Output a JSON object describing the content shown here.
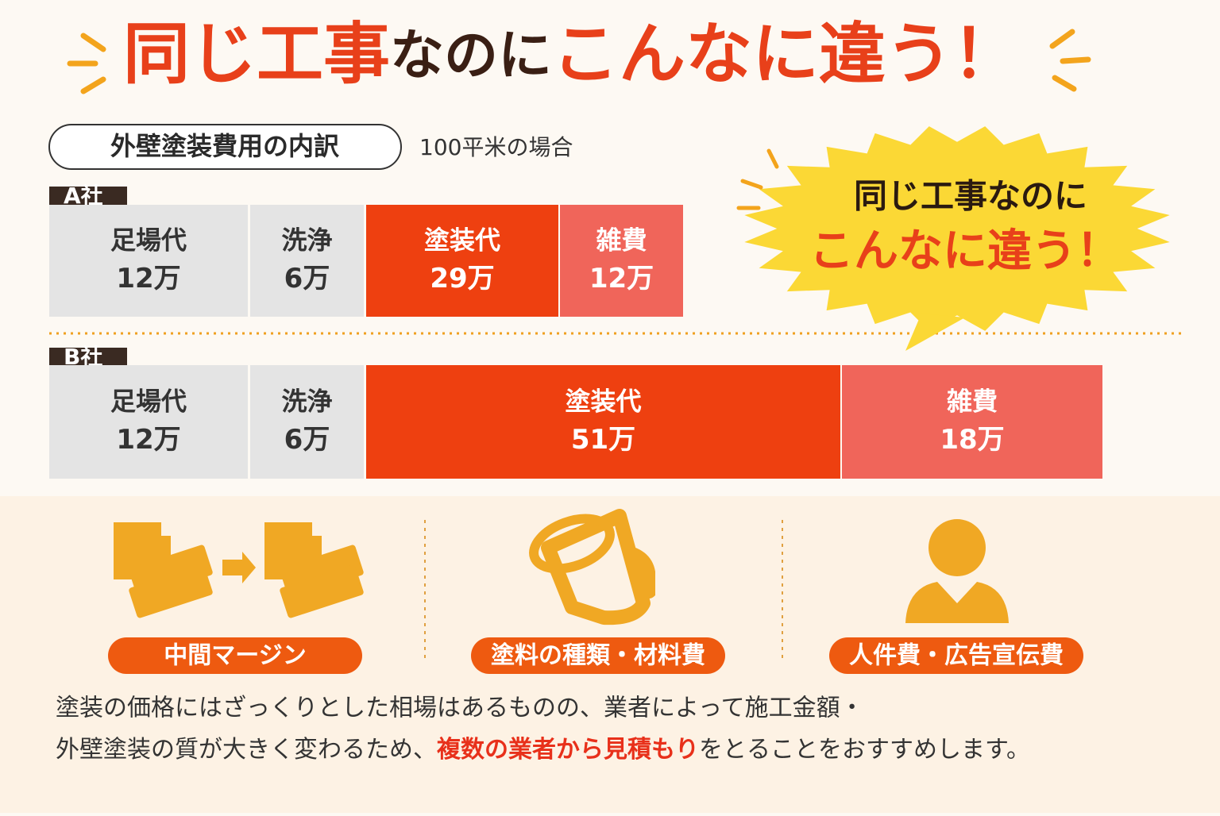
{
  "title": {
    "part1": "同じ工事",
    "part2": "なのに",
    "part3": "こんなに違う！"
  },
  "section_label": "外壁塗装費用の内訳",
  "condition": "100平米の場合",
  "companies": [
    {
      "name": "A社",
      "items": [
        {
          "label": "足場代",
          "amount": "12万"
        },
        {
          "label": "洗浄",
          "amount": "6万"
        },
        {
          "label": "塗装代",
          "amount": "29万"
        },
        {
          "label": "雑費",
          "amount": "12万"
        }
      ]
    },
    {
      "name": "B社",
      "items": [
        {
          "label": "足場代",
          "amount": "12万"
        },
        {
          "label": "洗浄",
          "amount": "6万"
        },
        {
          "label": "塗装代",
          "amount": "51万"
        },
        {
          "label": "雑費",
          "amount": "18万"
        }
      ]
    }
  ],
  "bubble": {
    "line1": "同じ工事なのに",
    "line2": "こんなに違う！"
  },
  "factors": [
    {
      "label": "中間マージン"
    },
    {
      "label": "塗料の種類・材料費"
    },
    {
      "label": "人件費・広告宣伝費"
    }
  ],
  "note": {
    "line1": "塗装の価格にはざっくりとした相場はあるものの、業者によって施工金額・",
    "line2_start": "外壁塗装の質が大きく変わるため、",
    "line2_highlight": "複数の業者から見積もり",
    "line2_end": "をとることをおすすめします。"
  }
}
